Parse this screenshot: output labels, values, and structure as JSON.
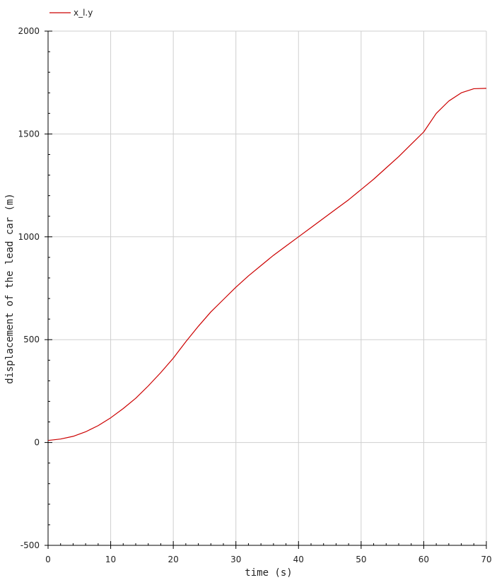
{
  "chart_data": {
    "type": "line",
    "title": "",
    "xlabel": "time (s)",
    "ylabel": "displacement of the lead car (m)",
    "xlim": [
      0,
      70
    ],
    "ylim": [
      -500,
      2000
    ],
    "x_ticks": [
      "0",
      "10",
      "20",
      "30",
      "40",
      "50",
      "60",
      "70"
    ],
    "y_ticks": [
      "-500",
      "0",
      "500",
      "1000",
      "1500",
      "2000"
    ],
    "grid": true,
    "legend_position": "top-left",
    "series": [
      {
        "name": "x_l.y",
        "color": "#cc0000",
        "x": [
          0,
          2,
          4,
          6,
          8,
          10,
          12,
          14,
          16,
          18,
          20,
          22,
          24,
          26,
          28,
          30,
          32,
          34,
          36,
          38,
          40,
          42,
          44,
          46,
          48,
          50,
          52,
          54,
          56,
          58,
          60,
          62,
          64,
          66,
          68,
          70
        ],
        "y": [
          10,
          17,
          30,
          52,
          82,
          120,
          165,
          215,
          275,
          340,
          410,
          490,
          565,
          635,
          695,
          755,
          810,
          860,
          910,
          955,
          1000,
          1045,
          1090,
          1135,
          1180,
          1230,
          1280,
          1335,
          1390,
          1450,
          1510,
          1600,
          1660,
          1700,
          1720,
          1722
        ]
      }
    ]
  }
}
